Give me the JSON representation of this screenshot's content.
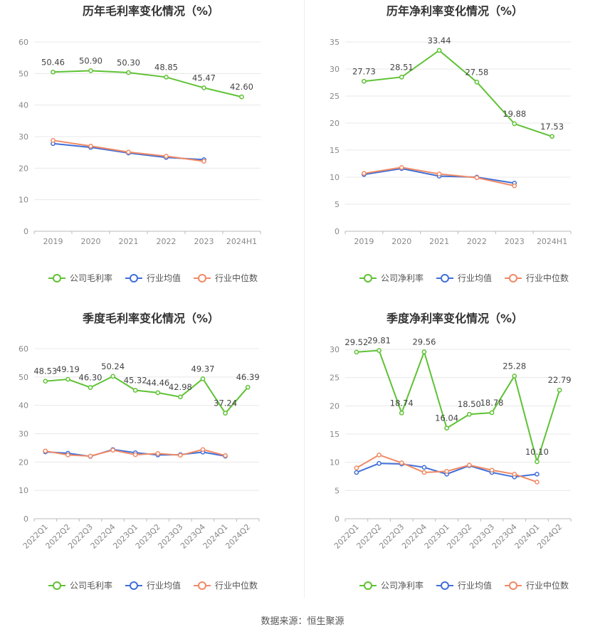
{
  "source_label": "数据来源：恒生聚源",
  "colors": {
    "company": "#5ec234",
    "industry_avg": "#3f6fd8",
    "industry_median": "#f08a66"
  },
  "chart_data": [
    {
      "type": "line",
      "title": "历年毛利率变化情况（%）",
      "categories": [
        "2019",
        "2020",
        "2021",
        "2022",
        "2023",
        "2024H1"
      ],
      "ylim": [
        0,
        60
      ],
      "yticks": [
        0,
        10,
        20,
        30,
        40,
        50,
        60
      ],
      "legend_position": "bottom",
      "grid": true,
      "series": [
        {
          "name": "公司毛利率",
          "key": "company",
          "values": [
            50.46,
            50.9,
            50.3,
            48.85,
            45.47,
            42.6
          ],
          "labels": [
            "50.46",
            "50.90",
            "50.30",
            "48.85",
            "45.47",
            "42.60"
          ]
        },
        {
          "name": "行业均值",
          "key": "industry_avg",
          "values": [
            27.8,
            26.6,
            24.8,
            23.4,
            22.7,
            null
          ]
        },
        {
          "name": "行业中位数",
          "key": "industry_median",
          "values": [
            28.8,
            27.0,
            25.1,
            23.8,
            22.2,
            null
          ]
        }
      ]
    },
    {
      "type": "line",
      "title": "历年净利率变化情况（%）",
      "categories": [
        "2019",
        "2020",
        "2021",
        "2022",
        "2023",
        "2024H1"
      ],
      "ylim": [
        0,
        35
      ],
      "yticks": [
        0,
        5,
        10,
        15,
        20,
        25,
        30,
        35
      ],
      "legend_position": "bottom",
      "grid": true,
      "series": [
        {
          "name": "公司净利率",
          "key": "company",
          "values": [
            27.73,
            28.51,
            33.44,
            27.58,
            19.88,
            17.53
          ],
          "labels": [
            "27.73",
            "28.51",
            "33.44",
            "27.58",
            "19.88",
            "17.53"
          ]
        },
        {
          "name": "行业均值",
          "key": "industry_avg",
          "values": [
            10.5,
            11.6,
            10.2,
            10.0,
            8.9,
            null
          ]
        },
        {
          "name": "行业中位数",
          "key": "industry_median",
          "values": [
            10.7,
            11.8,
            10.6,
            9.9,
            8.4,
            null
          ]
        }
      ]
    },
    {
      "type": "line",
      "title": "季度毛利率变化情况（%）",
      "categories": [
        "2022Q1",
        "2022Q2",
        "2022Q3",
        "2022Q4",
        "2023Q1",
        "2023Q2",
        "2023Q3",
        "2023Q4",
        "2024Q1",
        "2024Q2"
      ],
      "ylim": [
        0,
        60
      ],
      "yticks": [
        0,
        10,
        20,
        30,
        40,
        50,
        60
      ],
      "legend_position": "bottom",
      "grid": true,
      "rotate_xlabels": true,
      "series": [
        {
          "name": "公司毛利率",
          "key": "company",
          "values": [
            48.53,
            49.19,
            46.3,
            50.24,
            45.32,
            44.46,
            42.98,
            49.37,
            37.24,
            46.39
          ],
          "labels": [
            "48.53",
            "49.19",
            "46.30",
            "50.24",
            "45.32",
            "44.46",
            "42.98",
            "49.37",
            "37.24",
            "46.39"
          ]
        },
        {
          "name": "行业均值",
          "key": "industry_avg",
          "values": [
            23.6,
            23.1,
            22.0,
            24.4,
            23.3,
            22.5,
            22.6,
            23.5,
            22.1,
            null
          ]
        },
        {
          "name": "行业中位数",
          "key": "industry_median",
          "values": [
            23.9,
            22.5,
            22.1,
            24.2,
            22.6,
            23.0,
            22.4,
            24.4,
            22.3,
            null
          ]
        }
      ]
    },
    {
      "type": "line",
      "title": "季度净利率变化情况（%）",
      "categories": [
        "2022Q1",
        "2022Q2",
        "2022Q3",
        "2022Q4",
        "2023Q1",
        "2023Q2",
        "2023Q3",
        "2023Q4",
        "2024Q1",
        "2024Q2"
      ],
      "ylim": [
        0,
        30
      ],
      "yticks": [
        0,
        5,
        10,
        15,
        20,
        25,
        30
      ],
      "legend_position": "bottom",
      "grid": true,
      "rotate_xlabels": true,
      "series": [
        {
          "name": "公司净利率",
          "key": "company",
          "values": [
            29.52,
            29.81,
            18.74,
            29.56,
            16.04,
            18.5,
            18.78,
            25.28,
            10.1,
            22.79
          ],
          "labels": [
            "29.52",
            "29.81",
            "18.74",
            "29.56",
            "16.04",
            "18.50",
            "18.78",
            "25.28",
            "10.10",
            "22.79"
          ]
        },
        {
          "name": "行业均值",
          "key": "industry_avg",
          "values": [
            8.2,
            9.8,
            9.7,
            9.1,
            7.9,
            9.4,
            8.2,
            7.4,
            7.9,
            null
          ]
        },
        {
          "name": "行业中位数",
          "key": "industry_median",
          "values": [
            9.0,
            11.3,
            9.9,
            8.2,
            8.4,
            9.5,
            8.6,
            7.9,
            6.5,
            null
          ]
        }
      ]
    }
  ]
}
